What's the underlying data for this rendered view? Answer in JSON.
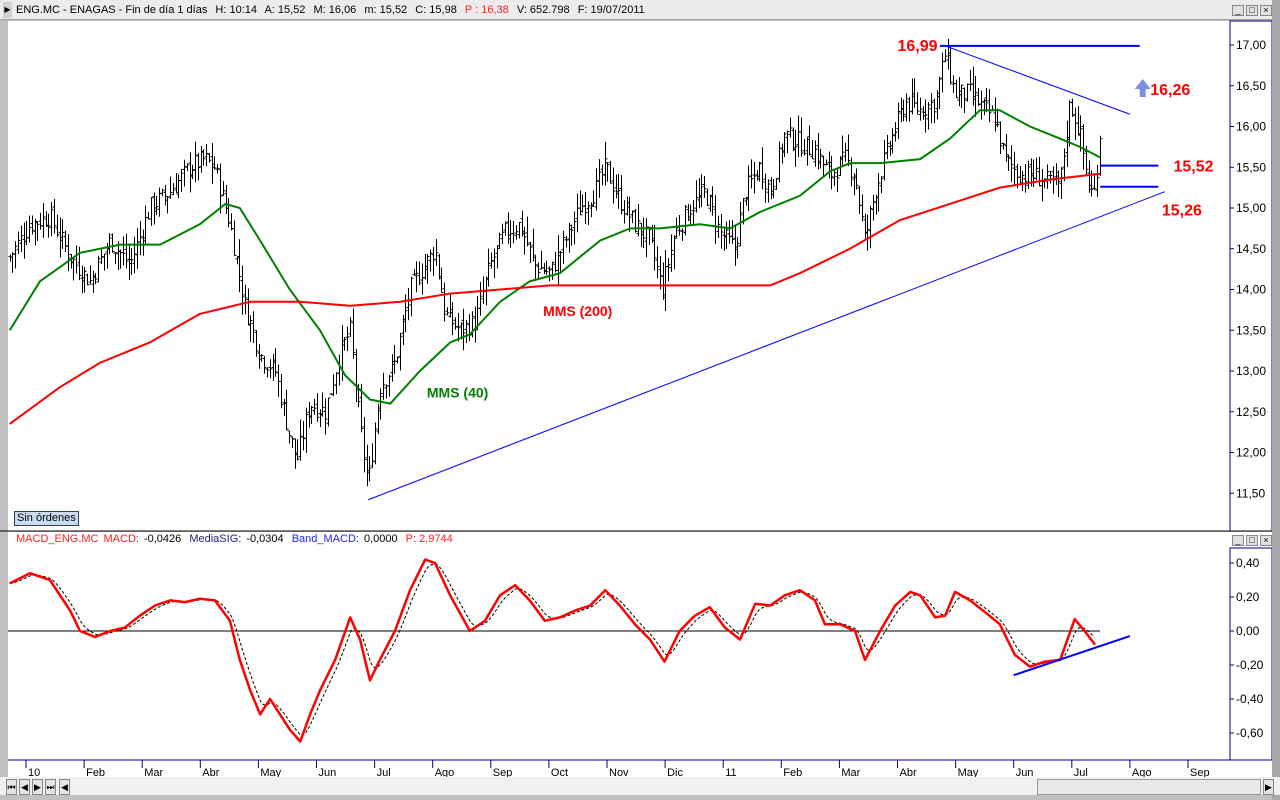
{
  "header": {
    "symbol": "ENG.MC - ENAGAS - Fin de día 1 días",
    "h": "H: 10:14",
    "a": "A: 15,52",
    "m_max": "M: 16,06",
    "m_min": "m: 15,52",
    "c": "C: 15,98",
    "p": "P : 16,38",
    "v": "V: 652.798",
    "f": "F: 19/07/2011"
  },
  "macd_header": {
    "name": "MACD_ENG.MC",
    "macd_label": "MACD:",
    "macd_val": "-0,0426",
    "sig_label": "MediaSIG:",
    "sig_val": "-0,0304",
    "band_label": "Band_MACD:",
    "band_val": "0,0000",
    "p": "P: 2,9744"
  },
  "orders_badge": "Sin órdenes",
  "window_buttons": {
    "min": "_",
    "max": "□",
    "close": "×"
  },
  "nav_buttons": [
    "⏮",
    "◀",
    "▶",
    "⏭",
    "◀",
    "▶"
  ],
  "colors": {
    "mms40": "#008000",
    "mms200": "#ff0000",
    "trend": "#0000ff",
    "macd": "#ff0000",
    "annot": "#ff0000"
  },
  "chart_data": [
    {
      "type": "ohlc",
      "title": "ENG.MC - ENAGAS",
      "x_unit": "months since Jan 2010",
      "x_ticks": [
        "10",
        "Feb",
        "Mar",
        "Abr",
        "May",
        "Jun",
        "Jul",
        "Ago",
        "Sep",
        "Oct",
        "Nov",
        "Dic",
        "11",
        "Feb",
        "Mar",
        "Abr",
        "May",
        "Jun",
        "Jul",
        "Ago",
        "Sep"
      ],
      "y_ticks": [
        "11,50",
        "12,00",
        "12,50",
        "13,00",
        "13,50",
        "14,00",
        "14,50",
        "15,00",
        "15,50",
        "16,00",
        "16,50",
        "17,00"
      ],
      "ylim": [
        11.0,
        17.3
      ],
      "close_path": [
        [
          -0.28,
          14.4
        ],
        [
          0.07,
          14.8
        ],
        [
          0.41,
          14.9
        ],
        [
          0.76,
          14.4
        ],
        [
          1.1,
          14.1
        ],
        [
          1.45,
          14.6
        ],
        [
          1.79,
          14.3
        ],
        [
          2.13,
          15.0
        ],
        [
          2.48,
          15.2
        ],
        [
          2.82,
          15.5
        ],
        [
          3.08,
          15.6
        ],
        [
          3.25,
          15.5
        ],
        [
          3.51,
          14.8
        ],
        [
          3.77,
          13.8
        ],
        [
          4.03,
          13.2
        ],
        [
          4.29,
          13.0
        ],
        [
          4.54,
          12.2
        ],
        [
          4.66,
          11.9
        ],
        [
          4.89,
          12.6
        ],
        [
          5.15,
          12.5
        ],
        [
          5.4,
          13.2
        ],
        [
          5.58,
          13.5
        ],
        [
          5.75,
          12.3
        ],
        [
          5.89,
          11.6
        ],
        [
          6.09,
          12.8
        ],
        [
          6.35,
          13.1
        ],
        [
          6.61,
          14.0
        ],
        [
          6.87,
          14.3
        ],
        [
          7.04,
          14.5
        ],
        [
          7.21,
          13.7
        ],
        [
          7.47,
          13.5
        ],
        [
          7.73,
          13.6
        ],
        [
          7.99,
          14.3
        ],
        [
          8.24,
          14.7
        ],
        [
          8.5,
          14.8
        ],
        [
          8.76,
          14.3
        ],
        [
          9.02,
          14.2
        ],
        [
          9.28,
          14.6
        ],
        [
          9.54,
          15.0
        ],
        [
          9.79,
          15.2
        ],
        [
          9.97,
          15.5
        ],
        [
          10.22,
          15.1
        ],
        [
          10.48,
          14.8
        ],
        [
          10.74,
          14.6
        ],
        [
          10.95,
          14.0
        ],
        [
          11.17,
          14.7
        ],
        [
          11.43,
          15.0
        ],
        [
          11.69,
          15.2
        ],
        [
          11.94,
          14.7
        ],
        [
          12.2,
          14.5
        ],
        [
          12.38,
          15.2
        ],
        [
          12.63,
          15.5
        ],
        [
          12.81,
          15.2
        ],
        [
          13.06,
          15.9
        ],
        [
          13.32,
          15.8
        ],
        [
          13.58,
          15.7
        ],
        [
          13.84,
          15.4
        ],
        [
          14.1,
          15.6
        ],
        [
          14.27,
          15.4
        ],
        [
          14.44,
          14.6
        ],
        [
          14.61,
          15.2
        ],
        [
          14.87,
          15.8
        ],
        [
          15.13,
          16.3
        ],
        [
          15.39,
          16.2
        ],
        [
          15.65,
          16.3
        ],
        [
          15.82,
          16.9
        ],
        [
          15.99,
          16.4
        ],
        [
          16.25,
          16.4
        ],
        [
          16.51,
          16.2
        ],
        [
          16.68,
          16.1
        ],
        [
          16.85,
          15.6
        ],
        [
          17.11,
          15.4
        ],
        [
          17.37,
          15.4
        ],
        [
          17.63,
          15.3
        ],
        [
          17.8,
          15.3
        ],
        [
          17.97,
          16.3
        ],
        [
          18.14,
          15.9
        ],
        [
          18.31,
          15.2
        ],
        [
          18.4,
          15.2
        ],
        [
          18.49,
          15.98
        ]
      ],
      "series": [
        {
          "name": "MMS (40)",
          "color": "#008000",
          "points": [
            [
              -0.28,
              13.5
            ],
            [
              0.24,
              14.1
            ],
            [
              0.93,
              14.45
            ],
            [
              1.62,
              14.55
            ],
            [
              2.31,
              14.55
            ],
            [
              2.99,
              14.8
            ],
            [
              3.43,
              15.05
            ],
            [
              3.68,
              15.0
            ],
            [
              4.03,
              14.6
            ],
            [
              4.54,
              14.0
            ],
            [
              5.06,
              13.5
            ],
            [
              5.49,
              12.95
            ],
            [
              5.92,
              12.65
            ],
            [
              6.27,
              12.6
            ],
            [
              6.78,
              13.0
            ],
            [
              7.3,
              13.35
            ],
            [
              7.64,
              13.45
            ],
            [
              8.16,
              13.85
            ],
            [
              8.67,
              14.1
            ],
            [
              9.19,
              14.2
            ],
            [
              9.88,
              14.6
            ],
            [
              10.4,
              14.75
            ],
            [
              10.91,
              14.75
            ],
            [
              11.6,
              14.8
            ],
            [
              12.12,
              14.75
            ],
            [
              12.63,
              14.95
            ],
            [
              13.32,
              15.15
            ],
            [
              13.84,
              15.45
            ],
            [
              14.18,
              15.55
            ],
            [
              14.7,
              15.55
            ],
            [
              15.39,
              15.6
            ],
            [
              15.9,
              15.85
            ],
            [
              16.42,
              16.2
            ],
            [
              16.76,
              16.2
            ],
            [
              17.28,
              16.0
            ],
            [
              17.8,
              15.85
            ],
            [
              18.14,
              15.75
            ],
            [
              18.49,
              15.62
            ]
          ]
        },
        {
          "name": "MMS (200)",
          "color": "#ff0000",
          "points": [
            [
              -0.28,
              12.35
            ],
            [
              0.58,
              12.8
            ],
            [
              1.27,
              13.1
            ],
            [
              2.13,
              13.35
            ],
            [
              2.99,
              13.7
            ],
            [
              3.86,
              13.85
            ],
            [
              4.72,
              13.85
            ],
            [
              5.58,
              13.8
            ],
            [
              6.44,
              13.85
            ],
            [
              7.3,
              13.95
            ],
            [
              8.16,
              14.0
            ],
            [
              9.02,
              14.05
            ],
            [
              9.88,
              14.05
            ],
            [
              10.74,
              14.05
            ],
            [
              11.6,
              14.05
            ],
            [
              12.81,
              14.05
            ],
            [
              13.32,
              14.2
            ],
            [
              14.18,
              14.5
            ],
            [
              15.04,
              14.85
            ],
            [
              15.9,
              15.05
            ],
            [
              16.76,
              15.25
            ],
            [
              17.63,
              15.35
            ],
            [
              18.49,
              15.42
            ]
          ]
        }
      ],
      "trendlines": [
        {
          "name": "resistance-high",
          "from": [
            15.73,
            16.99
          ],
          "to": [
            19.17,
            16.99
          ]
        },
        {
          "name": "descending-trend",
          "from": [
            15.82,
            16.99
          ],
          "to": [
            19.0,
            16.15
          ]
        },
        {
          "name": "ascending-support",
          "from": [
            5.89,
            11.42
          ],
          "to": [
            19.6,
            15.2
          ]
        },
        {
          "name": "level-15-52",
          "from": [
            18.49,
            15.52
          ],
          "to": [
            19.49,
            15.52
          ]
        },
        {
          "name": "level-15-26",
          "from": [
            18.49,
            15.26
          ],
          "to": [
            19.49,
            15.26
          ]
        }
      ],
      "annotations": [
        {
          "text": "16,99",
          "t": 15.0,
          "y": 17.0,
          "color": "#ff0000"
        },
        {
          "text": "16,26",
          "t": 19.35,
          "y": 16.46,
          "color": "#ff0000"
        },
        {
          "text": "15,52",
          "t": 19.75,
          "y": 15.52,
          "color": "#ff0000"
        },
        {
          "text": "15,26",
          "t": 19.55,
          "y": 14.98,
          "color": "#ff0000"
        },
        {
          "text": "MMS (200)",
          "t": 8.9,
          "y": 13.75,
          "color": "#ff0000"
        },
        {
          "text": "MMS (40)",
          "t": 6.9,
          "y": 12.75,
          "color": "#008000"
        }
      ]
    },
    {
      "type": "line",
      "title": "MACD_ENG.MC",
      "y_ticks": [
        "0,40",
        "0,20",
        "0,00",
        "-0,20",
        "-0,40",
        "-0,60"
      ],
      "ylim": [
        -0.76,
        0.5
      ],
      "macd": [
        [
          -0.28,
          0.28
        ],
        [
          0.07,
          0.34
        ],
        [
          0.41,
          0.3
        ],
        [
          0.76,
          0.12
        ],
        [
          0.93,
          0.0
        ],
        [
          1.19,
          -0.035
        ],
        [
          1.45,
          0.0
        ],
        [
          1.7,
          0.02
        ],
        [
          1.96,
          0.09
        ],
        [
          2.22,
          0.15
        ],
        [
          2.48,
          0.18
        ],
        [
          2.74,
          0.17
        ],
        [
          2.99,
          0.19
        ],
        [
          3.25,
          0.18
        ],
        [
          3.51,
          0.06
        ],
        [
          3.68,
          -0.17
        ],
        [
          3.86,
          -0.35
        ],
        [
          4.03,
          -0.49
        ],
        [
          4.2,
          -0.4
        ],
        [
          4.37,
          -0.49
        ],
        [
          4.54,
          -0.58
        ],
        [
          4.72,
          -0.65
        ],
        [
          4.89,
          -0.49
        ],
        [
          5.06,
          -0.35
        ],
        [
          5.32,
          -0.17
        ],
        [
          5.58,
          0.08
        ],
        [
          5.75,
          -0.05
        ],
        [
          5.92,
          -0.29
        ],
        [
          6.09,
          -0.17
        ],
        [
          6.35,
          0.0
        ],
        [
          6.61,
          0.24
        ],
        [
          6.87,
          0.42
        ],
        [
          7.04,
          0.4
        ],
        [
          7.3,
          0.21
        ],
        [
          7.64,
          0.0
        ],
        [
          7.9,
          0.06
        ],
        [
          8.16,
          0.21
        ],
        [
          8.42,
          0.27
        ],
        [
          8.67,
          0.18
        ],
        [
          8.93,
          0.06
        ],
        [
          9.19,
          0.08
        ],
        [
          9.45,
          0.12
        ],
        [
          9.71,
          0.15
        ],
        [
          9.97,
          0.24
        ],
        [
          10.22,
          0.15
        ],
        [
          10.48,
          0.04
        ],
        [
          10.74,
          -0.05
        ],
        [
          10.99,
          -0.18
        ],
        [
          11.25,
          0.0
        ],
        [
          11.51,
          0.09
        ],
        [
          11.77,
          0.14
        ],
        [
          12.03,
          0.02
        ],
        [
          12.29,
          -0.05
        ],
        [
          12.55,
          0.16
        ],
        [
          12.81,
          0.15
        ],
        [
          13.06,
          0.21
        ],
        [
          13.32,
          0.24
        ],
        [
          13.58,
          0.18
        ],
        [
          13.75,
          0.04
        ],
        [
          14.01,
          0.04
        ],
        [
          14.27,
          0.0
        ],
        [
          14.44,
          -0.17
        ],
        [
          14.7,
          0.0
        ],
        [
          14.96,
          0.15
        ],
        [
          15.22,
          0.23
        ],
        [
          15.39,
          0.21
        ],
        [
          15.65,
          0.08
        ],
        [
          15.82,
          0.09
        ],
        [
          15.99,
          0.23
        ],
        [
          16.25,
          0.18
        ],
        [
          16.51,
          0.11
        ],
        [
          16.76,
          0.04
        ],
        [
          17.02,
          -0.14
        ],
        [
          17.28,
          -0.21
        ],
        [
          17.54,
          -0.18
        ],
        [
          17.8,
          -0.17
        ],
        [
          18.05,
          0.07
        ],
        [
          18.22,
          0.0
        ],
        [
          18.4,
          -0.08
        ]
      ],
      "signal_lag": "EMA(9) of MACD",
      "zero_line": 0,
      "trendline": {
        "from": [
          17.0,
          -0.26
        ],
        "to": [
          19.0,
          -0.03
        ]
      }
    }
  ]
}
